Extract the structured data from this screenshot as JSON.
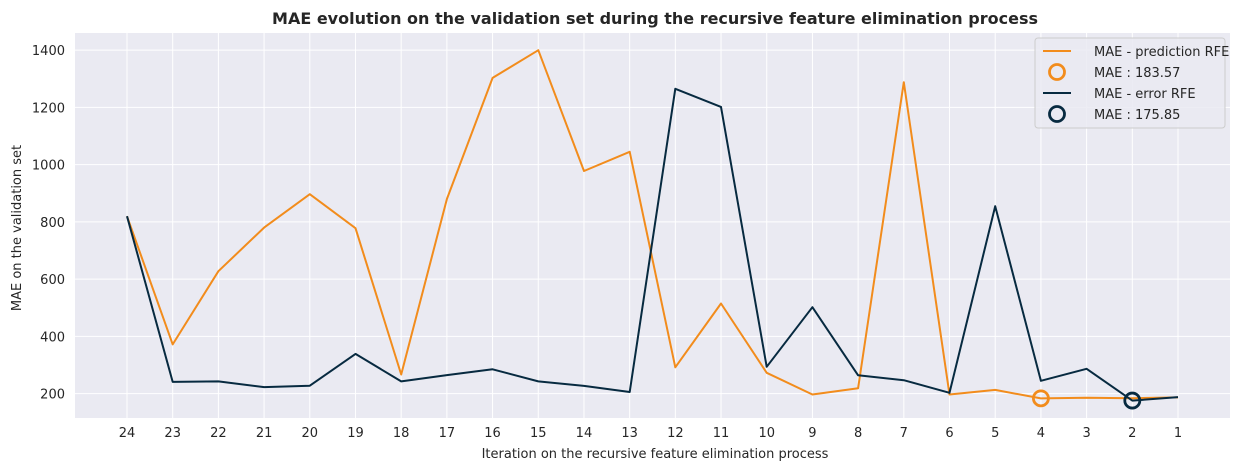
{
  "chart_data": {
    "type": "line",
    "title": "MAE evolution on the validation set during the recursive feature elimination process",
    "xlabel": "Iteration on the recursive feature elimination process",
    "ylabel": "MAE on the validation set",
    "categories": [
      "24",
      "23",
      "22",
      "21",
      "20",
      "19",
      "18",
      "17",
      "16",
      "15",
      "14",
      "13",
      "12",
      "11",
      "10",
      "9",
      "8",
      "7",
      "6",
      "5",
      "4",
      "3",
      "2",
      "1"
    ],
    "yticks": [
      200,
      400,
      600,
      800,
      1000,
      1200,
      1400
    ],
    "ylim": [
      115,
      1460
    ],
    "grid": true,
    "legend_position": "top-right",
    "series": [
      {
        "name": "MAE - prediction RFE",
        "color": "#f28c1c",
        "values": [
          820,
          372,
          628,
          780,
          897,
          778,
          267,
          880,
          1303,
          1400,
          978,
          1045,
          292,
          515,
          273,
          197,
          219,
          1288,
          197,
          213,
          183.57,
          186,
          184,
          187
        ]
      },
      {
        "name": "MAE - error RFE",
        "color": "#072a40",
        "values": [
          820,
          241,
          243,
          223,
          228,
          339,
          243,
          265,
          285,
          243,
          227,
          206,
          1265,
          1202,
          294,
          502,
          264,
          247,
          203,
          855,
          245,
          287,
          175.85,
          188
        ]
      }
    ],
    "markers": [
      {
        "label": "MAE : 183.57",
        "category": "4",
        "value": 183.57,
        "color": "#f28c1c"
      },
      {
        "label": "MAE : 175.85",
        "category": "2",
        "value": 175.85,
        "color": "#072a40"
      }
    ]
  }
}
